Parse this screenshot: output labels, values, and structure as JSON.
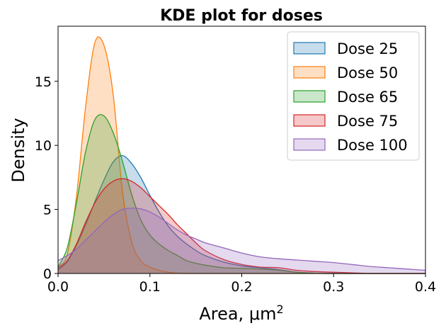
{
  "chart_data": {
    "type": "area",
    "title": "KDE plot for doses",
    "xlabel": "Area, μm",
    "xlabel_superscript": "2",
    "ylabel": "Density",
    "xlim": [
      0.0,
      0.4
    ],
    "ylim": [
      0,
      19.3
    ],
    "xticks": [
      0.0,
      0.1,
      0.2,
      0.3,
      0.4
    ],
    "xtick_labels": [
      "0.0",
      "0.1",
      "0.2",
      "0.3",
      "0.4"
    ],
    "yticks": [
      0,
      5,
      10,
      15
    ],
    "ytick_labels": [
      "0",
      "5",
      "10",
      "15"
    ],
    "grid": false,
    "legend_position": "top-right",
    "x": [
      0.0,
      0.01,
      0.02,
      0.03,
      0.04,
      0.05,
      0.06,
      0.07,
      0.08,
      0.09,
      0.1,
      0.11,
      0.12,
      0.13,
      0.14,
      0.15,
      0.16,
      0.18,
      0.2,
      0.22,
      0.24,
      0.26,
      0.28,
      0.3,
      0.32,
      0.34,
      0.36,
      0.38,
      0.4
    ],
    "series": [
      {
        "name": "Dose 25",
        "color": "#1f77b4",
        "values": [
          0.3,
          0.9,
          2.2,
          3.8,
          5.6,
          7.3,
          8.7,
          9.2,
          8.6,
          7.5,
          6.1,
          4.8,
          3.7,
          2.9,
          2.3,
          1.8,
          1.4,
          0.9,
          0.6,
          0.45,
          0.3,
          0.1,
          0.02,
          0.0,
          0.0,
          0.0,
          0.0,
          0.0,
          0.0
        ]
      },
      {
        "name": "Dose 50",
        "color": "#ff7f0e",
        "values": [
          0.5,
          1.5,
          6.0,
          13.0,
          18.0,
          17.8,
          14.0,
          6.5,
          2.5,
          1.0,
          0.5,
          0.25,
          0.1,
          0.03,
          0.0,
          0.0,
          0.0,
          0.0,
          0.0,
          0.0,
          0.0,
          0.0,
          0.0,
          0.0,
          0.0,
          0.0,
          0.0,
          0.0,
          0.0
        ]
      },
      {
        "name": "Dose 65",
        "color": "#2ca02c",
        "values": [
          0.5,
          2.0,
          5.5,
          9.5,
          12.0,
          12.3,
          11.0,
          8.8,
          6.2,
          4.2,
          3.0,
          2.3,
          1.8,
          1.4,
          1.0,
          0.8,
          0.65,
          0.45,
          0.4,
          0.35,
          0.25,
          0.1,
          0.02,
          0.0,
          0.0,
          0.0,
          0.0,
          0.0,
          0.0
        ]
      },
      {
        "name": "Dose 75",
        "color": "#d62728",
        "values": [
          0.4,
          1.0,
          2.3,
          4.0,
          5.5,
          6.6,
          7.2,
          7.4,
          7.2,
          6.7,
          6.0,
          5.3,
          4.6,
          3.8,
          3.1,
          2.4,
          1.8,
          1.1,
          0.7,
          0.5,
          0.45,
          0.25,
          0.15,
          0.1,
          0.05,
          0.0,
          0.0,
          0.0,
          0.0
        ]
      },
      {
        "name": "Dose 100",
        "color": "#9467bd",
        "values": [
          1.0,
          1.4,
          1.9,
          2.6,
          3.3,
          4.0,
          4.6,
          5.0,
          5.1,
          5.05,
          4.8,
          4.4,
          3.9,
          3.4,
          3.0,
          2.7,
          2.4,
          2.0,
          1.6,
          1.3,
          1.15,
          1.05,
          0.95,
          0.85,
          0.7,
          0.55,
          0.45,
          0.35,
          0.25
        ]
      }
    ]
  }
}
